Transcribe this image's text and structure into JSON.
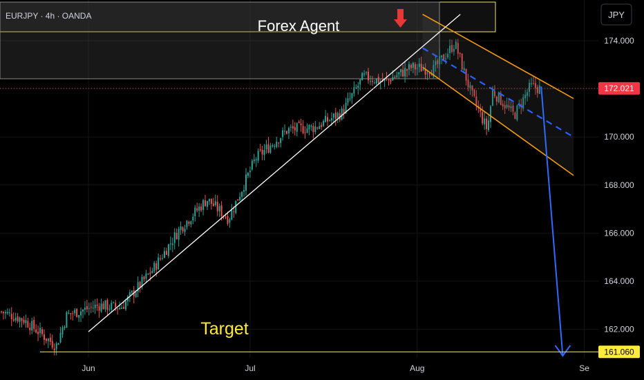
{
  "header": {
    "symbol_line": "EURJPY · 4h · OANDA",
    "currency": "JPY"
  },
  "annotations": {
    "brand": "Forex Agent",
    "target": "Target"
  },
  "colors": {
    "background": "#000000",
    "up_candle": "#26a69a",
    "down_candle": "#ef5350",
    "trendline": "#ffffff",
    "channel": "#f39c12",
    "midline": "#2962ff",
    "projection_arrow": "#2f6bff",
    "marker_arrow": "#e53935",
    "target_line": "#ffd600",
    "price_badge": "#f23645",
    "target_badge": "#ffeb3b",
    "box_border": "#f3e37c"
  },
  "chart_data": {
    "type": "candlestick",
    "y_axis": {
      "range": [
        160.5,
        176.5
      ],
      "ticks": [
        174.0,
        172.0,
        170.0,
        168.0,
        166.0,
        164.0,
        162.0
      ],
      "tick_labels": [
        "174.000",
        "172.000",
        "170.000",
        "168.000",
        "166.000",
        "164.000",
        "162.000"
      ]
    },
    "x_axis": {
      "labels": [
        "Jun",
        "Jul",
        "Aug",
        "Se"
      ]
    },
    "current_price": {
      "value": 172.021,
      "label": "172.021"
    },
    "target_price": {
      "value": 161.06,
      "label": "161.060"
    },
    "trend_path": [
      [
        "May 15",
        162.8
      ],
      [
        "May 20",
        162.4
      ],
      [
        "May 26",
        161.3
      ],
      [
        "May 28",
        162.6
      ],
      [
        "Jun 3",
        163.0
      ],
      [
        "Jun 7",
        162.9
      ],
      [
        "Jun 13",
        164.5
      ],
      [
        "Jun 18",
        166.2
      ],
      [
        "Jun 23",
        167.4
      ],
      [
        "Jun 27",
        166.6
      ],
      [
        "Jul 2",
        169.1
      ],
      [
        "Jul 8",
        170.3
      ],
      [
        "Jul 13",
        170.4
      ],
      [
        "Jul 18",
        171.0
      ],
      [
        "Jul 22",
        172.5
      ],
      [
        "Jul 26",
        172.3
      ],
      [
        "Jul 31",
        172.9
      ],
      [
        "Aug 4",
        172.8
      ],
      [
        "Aug 8",
        173.9
      ],
      [
        "Aug 11",
        171.8
      ],
      [
        "Aug 14",
        170.3
      ],
      [
        "Aug 15",
        171.9
      ],
      [
        "Aug 19",
        170.9
      ],
      [
        "Aug 22",
        172.1
      ],
      [
        "Aug 24",
        172.0
      ]
    ],
    "drawings": {
      "support_trendline": [
        [
          "Jun 1",
          161.9
        ],
        [
          "Aug 9",
          175.1
        ]
      ],
      "channel_upper": [
        [
          "Aug 2",
          175.1
        ],
        [
          "Aug 30",
          171.6
        ]
      ],
      "channel_lower": [
        [
          "Aug 2",
          172.9
        ],
        [
          "Aug 30",
          168.4
        ]
      ],
      "channel_mid": [
        [
          "Aug 2",
          173.7
        ],
        [
          "Aug 30",
          170.0
        ]
      ],
      "projection": [
        [
          "Aug 24",
          172.1
        ],
        [
          "Aug 28",
          160.9
        ]
      ]
    }
  }
}
